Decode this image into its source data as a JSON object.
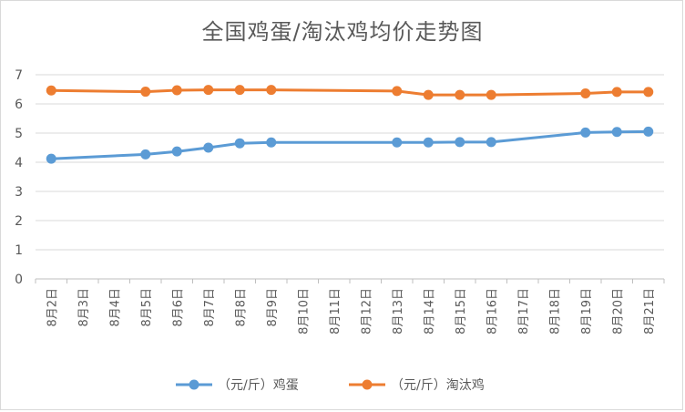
{
  "chart_data": {
    "type": "line",
    "title": "全国鸡蛋/淘汰鸡均价走势图",
    "xlabel": "",
    "ylabel": "",
    "ylim": [
      0,
      7
    ],
    "yticks": [
      0,
      1,
      2,
      3,
      4,
      5,
      6,
      7
    ],
    "grid": true,
    "legend_position": "bottom",
    "categories": [
      "8月2日",
      "8月3日",
      "8月4日",
      "8月5日",
      "8月6日",
      "8月7日",
      "8月8日",
      "8月9日",
      "8月10日",
      "8月11日",
      "8月12日",
      "8月13日",
      "8月14日",
      "8月15日",
      "8月16日",
      "8月17日",
      "8月18日",
      "8月19日",
      "8月20日",
      "8月21日"
    ],
    "series": [
      {
        "name": "（元/斤）鸡蛋",
        "color": "#5b9bd5",
        "values": [
          4.12,
          null,
          null,
          4.27,
          4.37,
          4.5,
          4.65,
          4.68,
          null,
          null,
          null,
          4.68,
          4.68,
          4.69,
          4.69,
          null,
          null,
          5.02,
          5.04,
          5.05
        ]
      },
      {
        "name": "（元/斤）淘汰鸡",
        "color": "#ed7d31",
        "values": [
          6.46,
          null,
          null,
          6.42,
          6.47,
          6.48,
          6.48,
          6.48,
          null,
          null,
          null,
          6.44,
          6.31,
          6.31,
          6.31,
          null,
          null,
          6.36,
          6.41,
          6.41
        ]
      }
    ]
  }
}
